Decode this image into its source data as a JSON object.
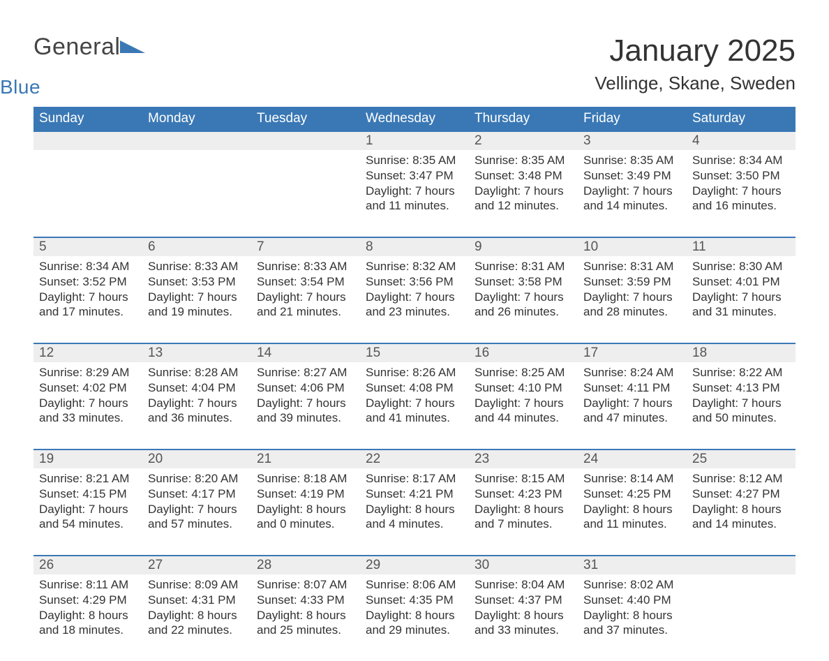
{
  "logo": {
    "part1": "General",
    "part2": "Blue"
  },
  "title": "January 2025",
  "location": "Vellinge, Skane, Sweden",
  "colors": {
    "header_bg": "#3a78b5",
    "header_text": "#ffffff",
    "daynum_bg": "#eeeeee",
    "row_border": "#3a78b5",
    "body_text": "#333333",
    "page_bg": "#ffffff"
  },
  "typography": {
    "title_fontsize": 44,
    "location_fontsize": 26,
    "header_fontsize": 19,
    "daynum_fontsize": 19,
    "detail_fontsize": 17
  },
  "day_headers": [
    "Sunday",
    "Monday",
    "Tuesday",
    "Wednesday",
    "Thursday",
    "Friday",
    "Saturday"
  ],
  "weeks": [
    [
      null,
      null,
      null,
      {
        "n": "1",
        "sunrise": "8:35 AM",
        "sunset": "3:47 PM",
        "daylight_h": "7",
        "daylight_m": "11"
      },
      {
        "n": "2",
        "sunrise": "8:35 AM",
        "sunset": "3:48 PM",
        "daylight_h": "7",
        "daylight_m": "12"
      },
      {
        "n": "3",
        "sunrise": "8:35 AM",
        "sunset": "3:49 PM",
        "daylight_h": "7",
        "daylight_m": "14"
      },
      {
        "n": "4",
        "sunrise": "8:34 AM",
        "sunset": "3:50 PM",
        "daylight_h": "7",
        "daylight_m": "16"
      }
    ],
    [
      {
        "n": "5",
        "sunrise": "8:34 AM",
        "sunset": "3:52 PM",
        "daylight_h": "7",
        "daylight_m": "17"
      },
      {
        "n": "6",
        "sunrise": "8:33 AM",
        "sunset": "3:53 PM",
        "daylight_h": "7",
        "daylight_m": "19"
      },
      {
        "n": "7",
        "sunrise": "8:33 AM",
        "sunset": "3:54 PM",
        "daylight_h": "7",
        "daylight_m": "21"
      },
      {
        "n": "8",
        "sunrise": "8:32 AM",
        "sunset": "3:56 PM",
        "daylight_h": "7",
        "daylight_m": "23"
      },
      {
        "n": "9",
        "sunrise": "8:31 AM",
        "sunset": "3:58 PM",
        "daylight_h": "7",
        "daylight_m": "26"
      },
      {
        "n": "10",
        "sunrise": "8:31 AM",
        "sunset": "3:59 PM",
        "daylight_h": "7",
        "daylight_m": "28"
      },
      {
        "n": "11",
        "sunrise": "8:30 AM",
        "sunset": "4:01 PM",
        "daylight_h": "7",
        "daylight_m": "31"
      }
    ],
    [
      {
        "n": "12",
        "sunrise": "8:29 AM",
        "sunset": "4:02 PM",
        "daylight_h": "7",
        "daylight_m": "33"
      },
      {
        "n": "13",
        "sunrise": "8:28 AM",
        "sunset": "4:04 PM",
        "daylight_h": "7",
        "daylight_m": "36"
      },
      {
        "n": "14",
        "sunrise": "8:27 AM",
        "sunset": "4:06 PM",
        "daylight_h": "7",
        "daylight_m": "39"
      },
      {
        "n": "15",
        "sunrise": "8:26 AM",
        "sunset": "4:08 PM",
        "daylight_h": "7",
        "daylight_m": "41"
      },
      {
        "n": "16",
        "sunrise": "8:25 AM",
        "sunset": "4:10 PM",
        "daylight_h": "7",
        "daylight_m": "44"
      },
      {
        "n": "17",
        "sunrise": "8:24 AM",
        "sunset": "4:11 PM",
        "daylight_h": "7",
        "daylight_m": "47"
      },
      {
        "n": "18",
        "sunrise": "8:22 AM",
        "sunset": "4:13 PM",
        "daylight_h": "7",
        "daylight_m": "50"
      }
    ],
    [
      {
        "n": "19",
        "sunrise": "8:21 AM",
        "sunset": "4:15 PM",
        "daylight_h": "7",
        "daylight_m": "54"
      },
      {
        "n": "20",
        "sunrise": "8:20 AM",
        "sunset": "4:17 PM",
        "daylight_h": "7",
        "daylight_m": "57"
      },
      {
        "n": "21",
        "sunrise": "8:18 AM",
        "sunset": "4:19 PM",
        "daylight_h": "8",
        "daylight_m": "0"
      },
      {
        "n": "22",
        "sunrise": "8:17 AM",
        "sunset": "4:21 PM",
        "daylight_h": "8",
        "daylight_m": "4"
      },
      {
        "n": "23",
        "sunrise": "8:15 AM",
        "sunset": "4:23 PM",
        "daylight_h": "8",
        "daylight_m": "7"
      },
      {
        "n": "24",
        "sunrise": "8:14 AM",
        "sunset": "4:25 PM",
        "daylight_h": "8",
        "daylight_m": "11"
      },
      {
        "n": "25",
        "sunrise": "8:12 AM",
        "sunset": "4:27 PM",
        "daylight_h": "8",
        "daylight_m": "14"
      }
    ],
    [
      {
        "n": "26",
        "sunrise": "8:11 AM",
        "sunset": "4:29 PM",
        "daylight_h": "8",
        "daylight_m": "18"
      },
      {
        "n": "27",
        "sunrise": "8:09 AM",
        "sunset": "4:31 PM",
        "daylight_h": "8",
        "daylight_m": "22"
      },
      {
        "n": "28",
        "sunrise": "8:07 AM",
        "sunset": "4:33 PM",
        "daylight_h": "8",
        "daylight_m": "25"
      },
      {
        "n": "29",
        "sunrise": "8:06 AM",
        "sunset": "4:35 PM",
        "daylight_h": "8",
        "daylight_m": "29"
      },
      {
        "n": "30",
        "sunrise": "8:04 AM",
        "sunset": "4:37 PM",
        "daylight_h": "8",
        "daylight_m": "33"
      },
      {
        "n": "31",
        "sunrise": "8:02 AM",
        "sunset": "4:40 PM",
        "daylight_h": "8",
        "daylight_m": "37"
      },
      null
    ]
  ],
  "labels": {
    "sunrise_prefix": "Sunrise: ",
    "sunset_prefix": "Sunset: ",
    "daylight_prefix": "Daylight: ",
    "hours_word": " hours",
    "and_word": "and ",
    "minutes_word": " minutes."
  }
}
